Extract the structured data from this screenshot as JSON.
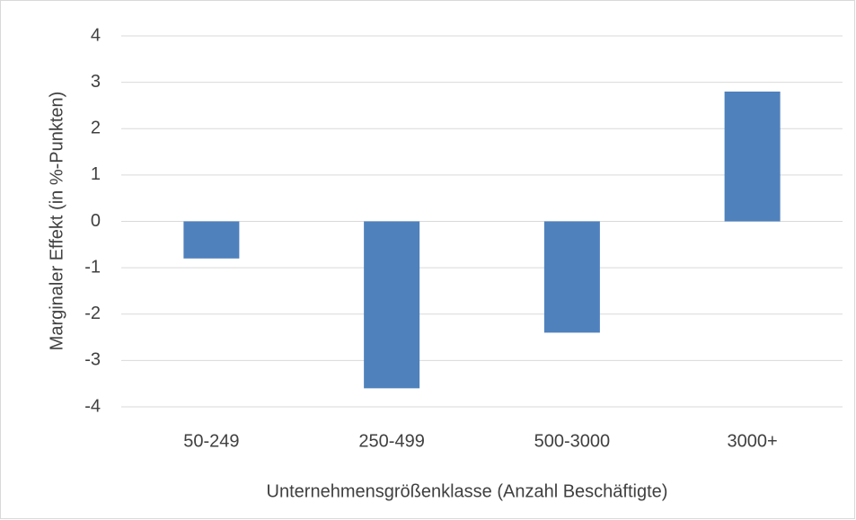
{
  "chart_data": {
    "type": "bar",
    "categories": [
      "50-249",
      "250-499",
      "500-3000",
      "3000+"
    ],
    "values": [
      -0.8,
      -3.6,
      -2.4,
      2.8
    ],
    "color": "#4f81bd",
    "ylim": [
      -4,
      4
    ],
    "yticks": [
      -4,
      -3,
      -2,
      -1,
      0,
      1,
      2,
      3,
      4
    ],
    "grid": true,
    "xlabel": "Unternehmensgrößenklasse (Anzahl Beschäftigte)",
    "ylabel": "Marginaler Effekt (in %-Punkten)"
  }
}
